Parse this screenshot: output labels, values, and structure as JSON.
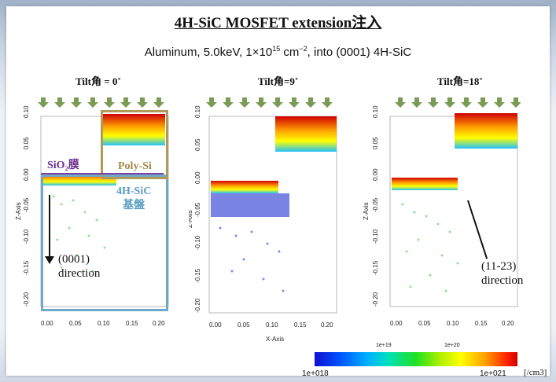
{
  "title": "4H-SiC MOSFET extension注入",
  "subtitle": {
    "main": "Aluminum, 5.0keV, 1×10",
    "exp": "15",
    "unit": " cm",
    "unit_exp": "−2",
    "tail": ", into (0001) 4H-SiC"
  },
  "tilts": [
    "Tilt角 = 0˚",
    "Tilt角=9˚",
    "Tilt角=18˚"
  ],
  "z_axis_label": "Z-Axis",
  "x_axis_label": "X-Axis",
  "z_ticks": [
    "0.10",
    "0.05",
    "0.00",
    "-0.05",
    "-0.10",
    "-0.15",
    "-0.20"
  ],
  "x_ticks": [
    "0.00",
    "0.05",
    "0.10",
    "0.15",
    "0.20"
  ],
  "labels": {
    "sio2": "SiO₂膜",
    "poly": "Poly-Si",
    "substrate_line1": "4H-SiC",
    "substrate_line2": "基盤",
    "dir1_line1": "(0001)",
    "dir1_line2": "direction",
    "dir3_line1": "(11-23)",
    "dir3_line2": "direction"
  },
  "colorbar": {
    "min": "1e+018",
    "max": "1e+021",
    "mid1": "1e+19",
    "mid2": "1e+20",
    "unit": "[/cm3]"
  },
  "colors": {
    "substrate_box": "#6fa8c8",
    "poly_box": "#b09a5a",
    "sio2_line": "#7b3fa0"
  }
}
